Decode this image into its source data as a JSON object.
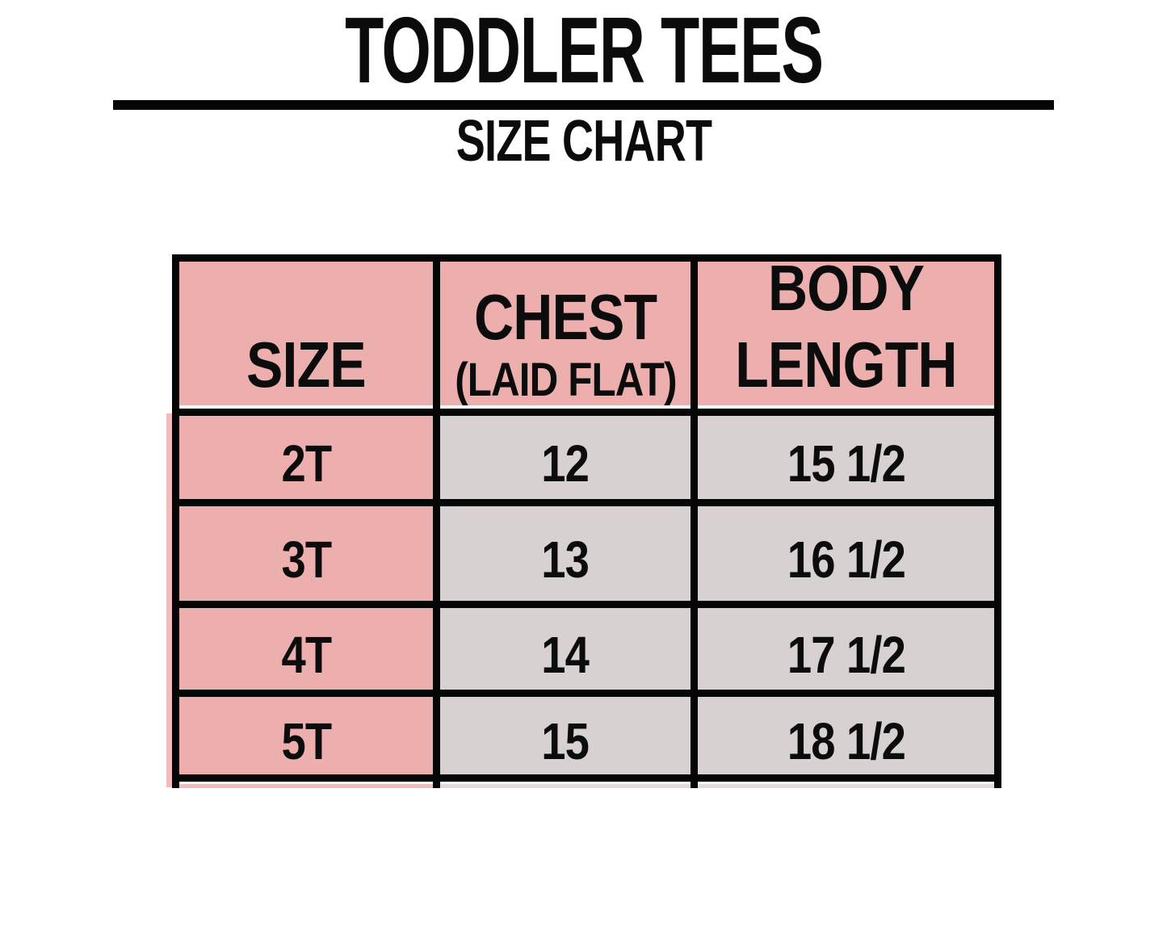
{
  "page": {
    "title": "TODDLER TEES",
    "subtitle": "SIZE CHART"
  },
  "table": {
    "headers": {
      "size": "SIZE",
      "chest_line1": "CHEST",
      "chest_line2": "(LAID FLAT)",
      "body_line1": "BODY",
      "body_line2": "LENGTH"
    },
    "rows": [
      {
        "size": "2T",
        "chest": "12",
        "body": "15 1/2"
      },
      {
        "size": "3T",
        "chest": "13",
        "body": "16 1/2"
      },
      {
        "size": "4T",
        "chest": "14",
        "body": "17 1/2"
      },
      {
        "size": "5T",
        "chest": "15",
        "body": "18 1/2"
      }
    ]
  },
  "chart_data": {
    "type": "table",
    "title": "TODDLER TEES",
    "subtitle": "SIZE CHART",
    "columns": [
      "SIZE",
      "CHEST (LAID FLAT)",
      "BODY LENGTH"
    ],
    "rows": [
      [
        "2T",
        "12",
        "15 1/2"
      ],
      [
        "3T",
        "13",
        "16 1/2"
      ],
      [
        "4T",
        "14",
        "17 1/2"
      ],
      [
        "5T",
        "15",
        "18 1/2"
      ]
    ]
  },
  "colors": {
    "header_pink": "#EDAEAE",
    "cell_gray": "#D8D1D1",
    "border_black": "#060606",
    "background": "#FFFFFF"
  }
}
